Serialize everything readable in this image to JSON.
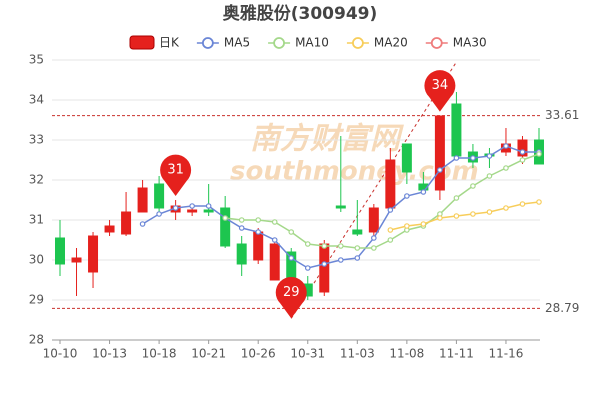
{
  "chart_data": {
    "type": "candlestick",
    "title": "奥雅股份(300949)",
    "candle_name": "日K",
    "watermark": [
      "南方财富网",
      "southmoney.com"
    ],
    "categories": [
      "10-10",
      null,
      null,
      "10-13",
      null,
      null,
      "10-18",
      null,
      null,
      "10-21",
      null,
      null,
      "10-26",
      null,
      null,
      "10-31",
      null,
      null,
      "11-03",
      null,
      null,
      "11-08",
      null,
      null,
      "11-11",
      null,
      null,
      "11-16",
      null,
      null
    ],
    "open": [
      30.55,
      29.95,
      29.7,
      30.7,
      30.65,
      31.2,
      31.9,
      31.2,
      31.2,
      31.25,
      31.3,
      30.4,
      30.0,
      29.5,
      30.2,
      29.4,
      29.2,
      31.35,
      30.75,
      30.7,
      31.3,
      32.9,
      31.9,
      31.75,
      33.9,
      32.7,
      32.65,
      32.7,
      32.6,
      33.0
    ],
    "high": [
      31.0,
      30.3,
      30.7,
      31.0,
      31.7,
      32.0,
      32.1,
      31.5,
      31.4,
      31.9,
      31.6,
      30.6,
      30.8,
      30.5,
      30.3,
      29.6,
      30.5,
      33.1,
      31.5,
      31.4,
      32.8,
      32.9,
      32.2,
      33.61,
      34.2,
      32.9,
      32.8,
      33.3,
      33.1,
      33.3
    ],
    "low": [
      29.6,
      29.1,
      29.3,
      30.6,
      30.6,
      31.2,
      31.2,
      31.0,
      31.1,
      31.1,
      30.3,
      29.6,
      29.9,
      29.5,
      28.79,
      29.0,
      29.1,
      31.2,
      30.6,
      30.6,
      31.2,
      31.9,
      31.7,
      31.5,
      32.6,
      32.3,
      32.3,
      32.6,
      32.4,
      32.4
    ],
    "close": [
      29.9,
      30.05,
      30.6,
      30.85,
      31.2,
      31.8,
      31.3,
      31.35,
      31.25,
      31.2,
      30.35,
      29.9,
      30.7,
      30.4,
      29.55,
      29.1,
      30.4,
      31.3,
      30.65,
      31.3,
      32.5,
      32.2,
      31.75,
      33.6,
      32.6,
      32.45,
      32.6,
      32.9,
      33.0,
      32.4
    ],
    "markers": [
      null,
      null,
      null,
      null,
      null,
      null,
      null,
      "31",
      null,
      null,
      null,
      null,
      null,
      null,
      "29",
      null,
      null,
      null,
      null,
      null,
      null,
      null,
      null,
      "34",
      null,
      null,
      null,
      null,
      null,
      null
    ],
    "up_color": "#e5211d",
    "down_color": "#1dc54f",
    "series": [
      {
        "name": "MA5",
        "color": "#6b86d6",
        "values": [
          null,
          null,
          null,
          null,
          null,
          30.9,
          31.15,
          31.3,
          31.35,
          31.35,
          31.05,
          30.8,
          30.7,
          30.5,
          30.05,
          29.8,
          29.9,
          30.0,
          30.05,
          30.55,
          31.25,
          31.6,
          31.7,
          32.25,
          32.55,
          32.55,
          32.6,
          32.85,
          32.7,
          32.7
        ]
      },
      {
        "name": "MA10",
        "color": "#a4d88a",
        "values": [
          null,
          null,
          null,
          null,
          null,
          null,
          null,
          null,
          null,
          null,
          31.05,
          31.0,
          31.0,
          30.95,
          30.7,
          30.4,
          30.35,
          30.35,
          30.3,
          30.3,
          30.5,
          30.75,
          30.85,
          31.15,
          31.55,
          31.85,
          32.1,
          32.3,
          32.5,
          32.65
        ]
      },
      {
        "name": "MA20",
        "color": "#f7cd5a",
        "values": [
          null,
          null,
          null,
          null,
          null,
          null,
          null,
          null,
          null,
          null,
          null,
          null,
          null,
          null,
          null,
          null,
          null,
          null,
          null,
          null,
          30.75,
          30.85,
          30.9,
          31.05,
          31.1,
          31.15,
          31.2,
          31.3,
          31.4,
          31.45
        ]
      },
      {
        "name": "MA30",
        "color": "#ef7c7c",
        "values": [
          null,
          null,
          null,
          null,
          null,
          null,
          null,
          null,
          null,
          null,
          null,
          null,
          null,
          null,
          null,
          null,
          null,
          null,
          null,
          null,
          null,
          null,
          null,
          null,
          null,
          null,
          null,
          null,
          null,
          null
        ]
      }
    ],
    "ylim": [
      28,
      35
    ],
    "yticks": [
      28,
      29,
      30,
      31,
      32,
      33,
      34,
      35
    ],
    "ref_lines": [
      33.61,
      28.79
    ],
    "ref_color": "#c9302c",
    "grid": true
  }
}
